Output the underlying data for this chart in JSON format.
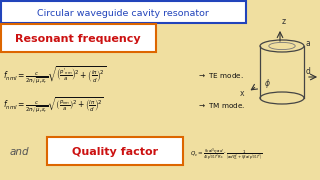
{
  "bg_color": "#f0dfa0",
  "title_text": "Circular waveguide cavity resonator",
  "title_box_edgecolor": "#2244bb",
  "title_text_color": "#2244bb",
  "resonant_text": "Resonant frequency",
  "resonant_box_edgecolor": "#dd6600",
  "resonant_text_color": "#cc1111",
  "quality_text": "Quality factor",
  "quality_box_edgecolor": "#dd6600",
  "quality_text_color": "#cc1111",
  "formula_color": "#111111",
  "and_text": "and",
  "and_color": "#555555"
}
